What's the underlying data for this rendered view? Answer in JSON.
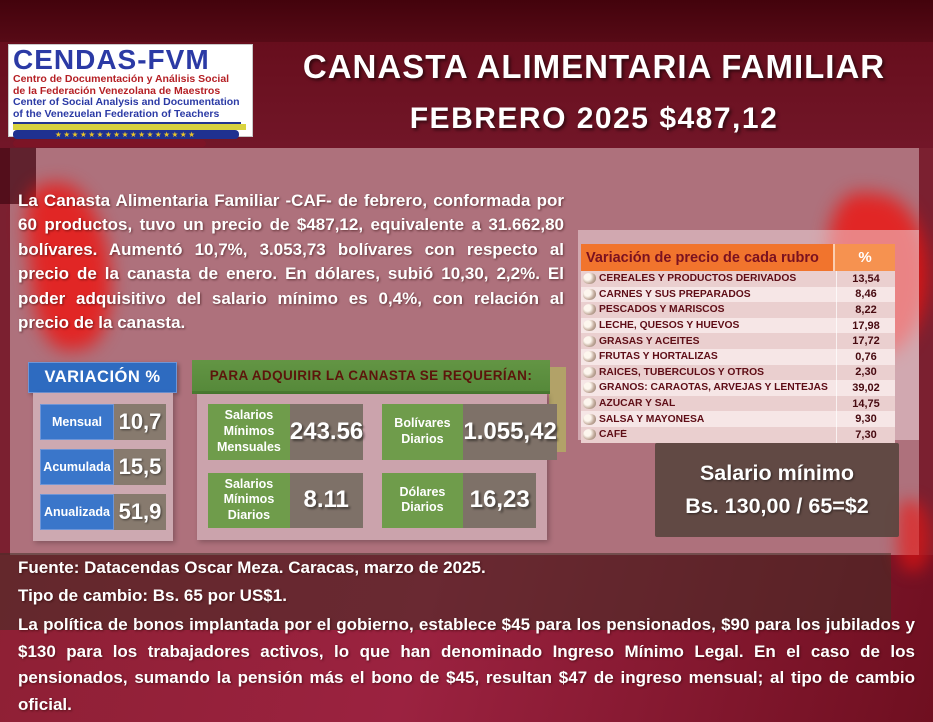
{
  "colors": {
    "background_maroon": "#701425",
    "top_band": "#43030c",
    "middle_band_mauve": "#a9848c",
    "accent_red_blob": "#ee1410",
    "table_header_orange": "#f1742d",
    "green_header": "#5d9040",
    "green_label": "#6f9c4b",
    "blue_header": "#2e6bc0",
    "gray_value_box": "#7e7168",
    "min_wage_box": "#5a453f",
    "logo_blue": "#2b3aa5",
    "logo_red": "#b52025"
  },
  "header": {
    "logo": {
      "acronym": "CENDAS-FVM",
      "line1_es": "Centro de Documentación y Análisis Social",
      "line2_es": "de la Federación Venezolana de Maestros",
      "line1_en": "Center of Social Analysis and Documentation",
      "line2_en": "of the Venezuelan Federation of Teachers",
      "flag_stars": "★★★★★★★★★★★★★★★★★"
    },
    "title": "CANASTA ALIMENTARIA FAMILIAR",
    "subtitle": "FEBRERO 2025 $487,12"
  },
  "summary": "La Canasta Alimentaria Familiar -CAF- de febrero, conformada por 60 productos, tuvo un precio de $487,12, equivalente a 31.662,80 bolívares. Aumentó 10,7%, 3.053,73 bolívares con respecto al precio de la canasta de enero. En dólares, subió 10,30, 2,2%. El poder adquisitivo del salario mínimo es 0,4%, con relación al precio de la canasta.",
  "variation": {
    "title": "VARIACIÓN %",
    "rows": [
      {
        "label": "Mensual",
        "value": "10,7"
      },
      {
        "label": "Acumulada",
        "value": "15,5"
      },
      {
        "label": "Anualizada",
        "value": "51,9"
      }
    ]
  },
  "requirements": {
    "title": "PARA ADQUIRIR LA CANASTA SE REQUERÍAN:",
    "items": [
      {
        "label": "Salarios Mínimos Mensuales",
        "value": "243.56"
      },
      {
        "label": "Bolívares Diarios",
        "value": "1.055,42"
      },
      {
        "label": "Salarios Mínimos Diarios",
        "value": "8.11"
      },
      {
        "label": "Dólares Diarios",
        "value": "16,23"
      }
    ]
  },
  "rubros_table": {
    "header_label": "Variación de precio de cada rubro",
    "header_percent": "%",
    "rows": [
      {
        "icon": "bread-icon",
        "label": "CEREALES Y PRODUCTOS DERIVADOS",
        "value": "13,54"
      },
      {
        "icon": "meat-icon",
        "label": "CARNES Y SUS PREPARADOS",
        "value": "8,46"
      },
      {
        "icon": "fish-icon",
        "label": "PESCADOS Y MARISCOS",
        "value": "8,22"
      },
      {
        "icon": "dairy-icon",
        "label": "LECHE, QUESOS Y HUEVOS",
        "value": "17,98"
      },
      {
        "icon": "oils-icon",
        "label": "GRASAS Y ACEITES",
        "value": "17,72"
      },
      {
        "icon": "fruits-icon",
        "label": "FRUTAS Y HORTALIZAS",
        "value": "0,76"
      },
      {
        "icon": "roots-icon",
        "label": "RAÍCES, TUBÉRCULOS Y OTROS",
        "value": "2,30"
      },
      {
        "icon": "grains-icon",
        "label": "GRANOS: CARAOTAS, ARVEJAS Y LENTEJAS",
        "value": "39,02"
      },
      {
        "icon": "sugar-icon",
        "label": "AZÚCAR Y SAL",
        "value": "14,75"
      },
      {
        "icon": "sauce-icon",
        "label": "SALSA Y MAYONESA",
        "value": "9,30"
      },
      {
        "icon": "coffee-icon",
        "label": "CAFÉ",
        "value": "7,30"
      }
    ]
  },
  "min_wage": {
    "line1": "Salario mínimo",
    "line2": "Bs. 130,00 / 65=$2"
  },
  "footer": {
    "source": "Fuente: Datacendas Oscar Meza. Caracas, marzo de 2025.",
    "exchange": "Tipo de cambio: Bs. 65 por US$1.",
    "note": "La política de bonos implantada por el gobierno, establece $45 para los pensionados, $90 para los jubilados y $130 para los trabajadores activos, lo que han denominado Ingreso Mínimo Legal. En el caso de los pensionados, sumando la pensión más el bono de $45,  resultan $47 de ingreso mensual; al tipo de cambio oficial."
  }
}
